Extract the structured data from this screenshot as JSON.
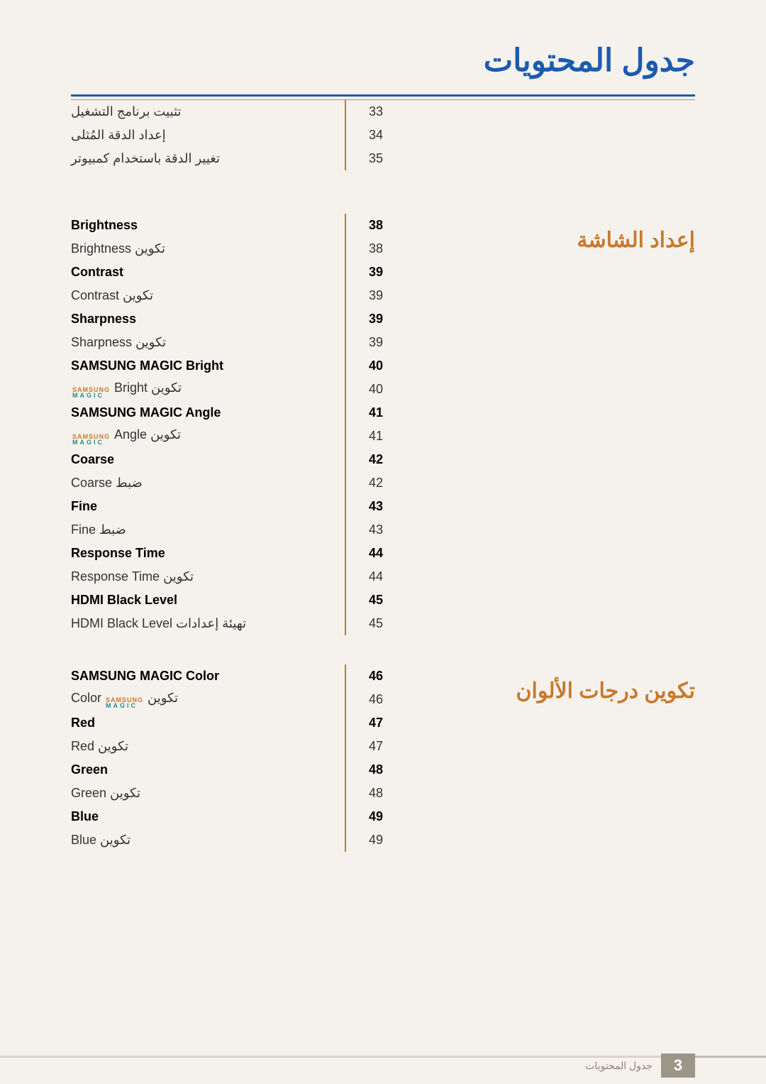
{
  "title": "جدول المحتويات",
  "colors": {
    "title": "#1a5bb0",
    "section": "#c8792a",
    "separator": "#c8792a",
    "footer_box": "#9c9688",
    "footer_text": "#8a8578",
    "background": "#f5f2ed",
    "magic_samsung": "#c8792a",
    "magic_magic": "#2a8c8c"
  },
  "sections": [
    {
      "title": "إعداد الشاشة"
    },
    {
      "title": "تكوين درجات الألوان"
    }
  ],
  "magic": {
    "top": "SAMSUNG",
    "bottom": "MAGIC"
  },
  "blocks": [
    {
      "rows": [
        {
          "page": "33",
          "bold": false,
          "text": "تثبيت برنامج التشغيل",
          "magic": false
        },
        {
          "page": "34",
          "bold": false,
          "text": "إعداد الدقة المُثلى",
          "magic": false
        },
        {
          "page": "35",
          "bold": false,
          "text": "تغيير الدقة باستخدام كمبيوتر",
          "magic": false
        }
      ]
    },
    {
      "rows": [
        {
          "page": "38",
          "bold": true,
          "text": "Brightness",
          "magic": false
        },
        {
          "page": "38",
          "bold": false,
          "text": "تكوين  Brightness",
          "magic": false
        },
        {
          "page": "39",
          "bold": true,
          "text": "Contrast",
          "magic": false
        },
        {
          "page": "39",
          "bold": false,
          "text": "تكوين Contrast",
          "magic": false
        },
        {
          "page": "39",
          "bold": true,
          "text": "Sharpness",
          "magic": false
        },
        {
          "page": "39",
          "bold": false,
          "text": "تكوين Sharpness",
          "magic": false
        },
        {
          "page": "40",
          "bold": true,
          "text": "SAMSUNG MAGIC Bright",
          "magic": false
        },
        {
          "page": "40",
          "bold": false,
          "prefix": "تكوين Bright",
          "magic": true,
          "suffix": ""
        },
        {
          "page": "41",
          "bold": true,
          "text": "SAMSUNG MAGIC Angle",
          "magic": false
        },
        {
          "page": "41",
          "bold": false,
          "prefix": "تكوين Angle",
          "magic": true,
          "suffix": ""
        },
        {
          "page": "42",
          "bold": true,
          "text": "Coarse",
          "magic": false
        },
        {
          "page": "42",
          "bold": false,
          "text": "ضبط  Coarse",
          "magic": false
        },
        {
          "page": "43",
          "bold": true,
          "text": "Fine",
          "magic": false
        },
        {
          "page": "43",
          "bold": false,
          "text": "ضبط  Fine",
          "magic": false
        },
        {
          "page": "44",
          "bold": true,
          "text": "Response Time",
          "magic": false
        },
        {
          "page": "44",
          "bold": false,
          "text": "تكوين Response Time",
          "magic": false
        },
        {
          "page": "45",
          "bold": true,
          "text": "HDMI Black Level",
          "magic": false
        },
        {
          "page": "45",
          "bold": false,
          "text": "تهيئة إعدادات HDMI Black Level",
          "magic": false
        }
      ]
    },
    {
      "rows": [
        {
          "page": "46",
          "bold": true,
          "text": "SAMSUNG MAGIC Color",
          "magic": false
        },
        {
          "page": "46",
          "bold": false,
          "prefix": "تكوين",
          "magic": true,
          "suffix": "Color"
        },
        {
          "page": "47",
          "bold": true,
          "text": "Red",
          "magic": false
        },
        {
          "page": "47",
          "bold": false,
          "text": "تكوين Red",
          "magic": false
        },
        {
          "page": "48",
          "bold": true,
          "text": "Green",
          "magic": false
        },
        {
          "page": "48",
          "bold": false,
          "text": "تكوين Green",
          "magic": false
        },
        {
          "page": "49",
          "bold": true,
          "text": "Blue",
          "magic": false
        },
        {
          "page": "49",
          "bold": false,
          "text": "تكوين Blue",
          "magic": false
        }
      ]
    }
  ],
  "footer": {
    "page_number": "3",
    "text": "جدول المحتويات"
  }
}
